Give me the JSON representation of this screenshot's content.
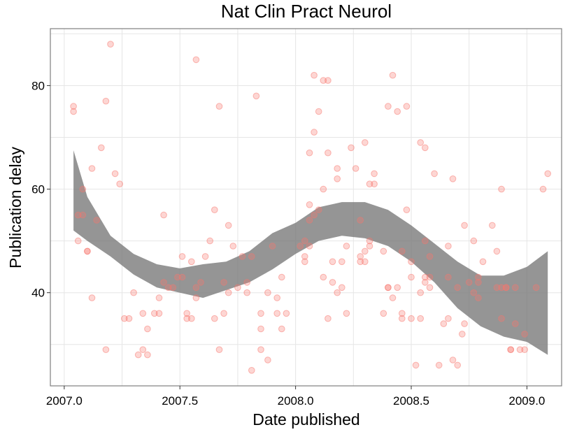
{
  "chart_data": {
    "type": "scatter",
    "title": "Nat Clin Pract Neurol",
    "xlabel": "Date published",
    "ylabel": "Publication delay",
    "xlim": [
      2006.94,
      2009.15
    ],
    "ylim": [
      22,
      91
    ],
    "x_ticks": [
      "2007.0",
      "2007.5",
      "2008.0",
      "2008.5",
      "2009.0"
    ],
    "y_ticks": [
      "40",
      "60",
      "80"
    ],
    "grid": true,
    "points": [
      [
        2007.04,
        76
      ],
      [
        2007.04,
        75
      ],
      [
        2007.06,
        55
      ],
      [
        2007.06,
        50
      ],
      [
        2007.08,
        60
      ],
      [
        2007.08,
        55
      ],
      [
        2007.1,
        48
      ],
      [
        2007.1,
        48
      ],
      [
        2007.12,
        64
      ],
      [
        2007.12,
        39
      ],
      [
        2007.14,
        54
      ],
      [
        2007.16,
        68
      ],
      [
        2007.18,
        77
      ],
      [
        2007.18,
        29
      ],
      [
        2007.2,
        88
      ],
      [
        2007.22,
        63
      ],
      [
        2007.24,
        61
      ],
      [
        2007.26,
        35
      ],
      [
        2007.28,
        35
      ],
      [
        2007.3,
        40
      ],
      [
        2007.32,
        28
      ],
      [
        2007.34,
        36
      ],
      [
        2007.34,
        29
      ],
      [
        2007.36,
        33
      ],
      [
        2007.36,
        28
      ],
      [
        2007.39,
        36
      ],
      [
        2007.41,
        36
      ],
      [
        2007.41,
        39
      ],
      [
        2007.43,
        55
      ],
      [
        2007.43,
        42
      ],
      [
        2007.45,
        41
      ],
      [
        2007.47,
        41
      ],
      [
        2007.49,
        43
      ],
      [
        2007.51,
        47
      ],
      [
        2007.51,
        43
      ],
      [
        2007.53,
        36
      ],
      [
        2007.53,
        35
      ],
      [
        2007.55,
        46
      ],
      [
        2007.55,
        35
      ],
      [
        2007.57,
        85
      ],
      [
        2007.57,
        41
      ],
      [
        2007.57,
        39
      ],
      [
        2007.59,
        42
      ],
      [
        2007.61,
        47
      ],
      [
        2007.63,
        50
      ],
      [
        2007.65,
        56
      ],
      [
        2007.65,
        35
      ],
      [
        2007.67,
        76
      ],
      [
        2007.67,
        29
      ],
      [
        2007.69,
        42
      ],
      [
        2007.69,
        36
      ],
      [
        2007.71,
        53
      ],
      [
        2007.71,
        40
      ],
      [
        2007.73,
        49
      ],
      [
        2007.75,
        41
      ],
      [
        2007.77,
        47
      ],
      [
        2007.79,
        42
      ],
      [
        2007.79,
        40
      ],
      [
        2007.81,
        47
      ],
      [
        2007.81,
        25
      ],
      [
        2007.83,
        78
      ],
      [
        2007.85,
        36
      ],
      [
        2007.85,
        33
      ],
      [
        2007.85,
        29
      ],
      [
        2007.88,
        40
      ],
      [
        2007.88,
        27
      ],
      [
        2007.9,
        49
      ],
      [
        2007.92,
        39
      ],
      [
        2007.92,
        36
      ],
      [
        2007.94,
        43
      ],
      [
        2007.94,
        33
      ],
      [
        2007.96,
        36
      ],
      [
        2008.02,
        49
      ],
      [
        2008.04,
        50
      ],
      [
        2008.04,
        47
      ],
      [
        2008.04,
        46
      ],
      [
        2008.06,
        67
      ],
      [
        2008.06,
        57
      ],
      [
        2008.06,
        54
      ],
      [
        2008.06,
        49
      ],
      [
        2008.08,
        82
      ],
      [
        2008.08,
        71
      ],
      [
        2008.08,
        55
      ],
      [
        2008.1,
        75
      ],
      [
        2008.1,
        56
      ],
      [
        2008.12,
        81
      ],
      [
        2008.12,
        60
      ],
      [
        2008.12,
        43
      ],
      [
        2008.14,
        81
      ],
      [
        2008.14,
        67
      ],
      [
        2008.14,
        35
      ],
      [
        2008.16,
        46
      ],
      [
        2008.16,
        42
      ],
      [
        2008.18,
        64
      ],
      [
        2008.18,
        62
      ],
      [
        2008.18,
        40
      ],
      [
        2008.2,
        46
      ],
      [
        2008.2,
        41
      ],
      [
        2008.22,
        49
      ],
      [
        2008.22,
        36
      ],
      [
        2008.24,
        68
      ],
      [
        2008.26,
        64
      ],
      [
        2008.28,
        54
      ],
      [
        2008.28,
        47
      ],
      [
        2008.28,
        46
      ],
      [
        2008.3,
        69
      ],
      [
        2008.3,
        48
      ],
      [
        2008.3,
        46
      ],
      [
        2008.32,
        61
      ],
      [
        2008.32,
        50
      ],
      [
        2008.32,
        49
      ],
      [
        2008.34,
        63
      ],
      [
        2008.34,
        61
      ],
      [
        2008.38,
        36
      ],
      [
        2008.38,
        48
      ],
      [
        2008.4,
        76
      ],
      [
        2008.4,
        41
      ],
      [
        2008.4,
        41
      ],
      [
        2008.42,
        82
      ],
      [
        2008.42,
        39
      ],
      [
        2008.44,
        75
      ],
      [
        2008.44,
        41
      ],
      [
        2008.46,
        48
      ],
      [
        2008.46,
        36
      ],
      [
        2008.46,
        35
      ],
      [
        2008.48,
        76
      ],
      [
        2008.48,
        56
      ],
      [
        2008.5,
        46
      ],
      [
        2008.5,
        43
      ],
      [
        2008.5,
        35
      ],
      [
        2008.52,
        26
      ],
      [
        2008.54,
        69
      ],
      [
        2008.54,
        40
      ],
      [
        2008.54,
        35
      ],
      [
        2008.56,
        68
      ],
      [
        2008.56,
        50
      ],
      [
        2008.56,
        43
      ],
      [
        2008.56,
        42
      ],
      [
        2008.58,
        43
      ],
      [
        2008.58,
        41
      ],
      [
        2008.58,
        47
      ],
      [
        2008.6,
        63
      ],
      [
        2008.62,
        26
      ],
      [
        2008.64,
        34
      ],
      [
        2008.66,
        35
      ],
      [
        2008.66,
        49
      ],
      [
        2008.66,
        43
      ],
      [
        2008.68,
        62
      ],
      [
        2008.68,
        27
      ],
      [
        2008.7,
        26
      ],
      [
        2008.7,
        41
      ],
      [
        2008.72,
        32
      ],
      [
        2008.73,
        53
      ],
      [
        2008.73,
        34
      ],
      [
        2008.75,
        42
      ],
      [
        2008.77,
        50
      ],
      [
        2008.77,
        40
      ],
      [
        2008.79,
        43
      ],
      [
        2008.79,
        42
      ],
      [
        2008.79,
        39
      ],
      [
        2008.81,
        46
      ],
      [
        2008.85,
        53
      ],
      [
        2008.87,
        48
      ],
      [
        2008.87,
        41
      ],
      [
        2008.89,
        60
      ],
      [
        2008.89,
        41
      ],
      [
        2008.89,
        35
      ],
      [
        2008.91,
        41
      ],
      [
        2008.91,
        41
      ],
      [
        2008.93,
        29
      ],
      [
        2008.93,
        29
      ],
      [
        2008.95,
        41
      ],
      [
        2008.95,
        34
      ],
      [
        2008.97,
        29
      ],
      [
        2008.99,
        32
      ],
      [
        2008.99,
        29
      ],
      [
        2009.04,
        41
      ],
      [
        2009.07,
        60
      ],
      [
        2009.09,
        63
      ]
    ],
    "smooth_band": {
      "x": [
        2007.04,
        2007.1,
        2007.2,
        2007.3,
        2007.4,
        2007.5,
        2007.6,
        2007.7,
        2007.8,
        2007.9,
        2008.0,
        2008.1,
        2008.2,
        2008.3,
        2008.4,
        2008.5,
        2008.6,
        2008.7,
        2008.8,
        2008.9,
        2009.0,
        2009.09
      ],
      "upper": [
        67.5,
        58.5,
        51.0,
        47.5,
        45.5,
        44.7,
        45.5,
        46.0,
        48.0,
        51.5,
        53.5,
        56.5,
        57.5,
        57.5,
        56.0,
        53.0,
        49.5,
        46.0,
        43.3,
        43.3,
        45.0,
        48.0
      ],
      "lower": [
        52.0,
        50.0,
        47.0,
        43.5,
        41.0,
        40.0,
        39.0,
        40.5,
        42.0,
        44.5,
        47.5,
        50.0,
        51.0,
        50.5,
        49.0,
        46.0,
        42.0,
        37.0,
        33.5,
        31.5,
        30.5,
        28.0
      ]
    }
  }
}
